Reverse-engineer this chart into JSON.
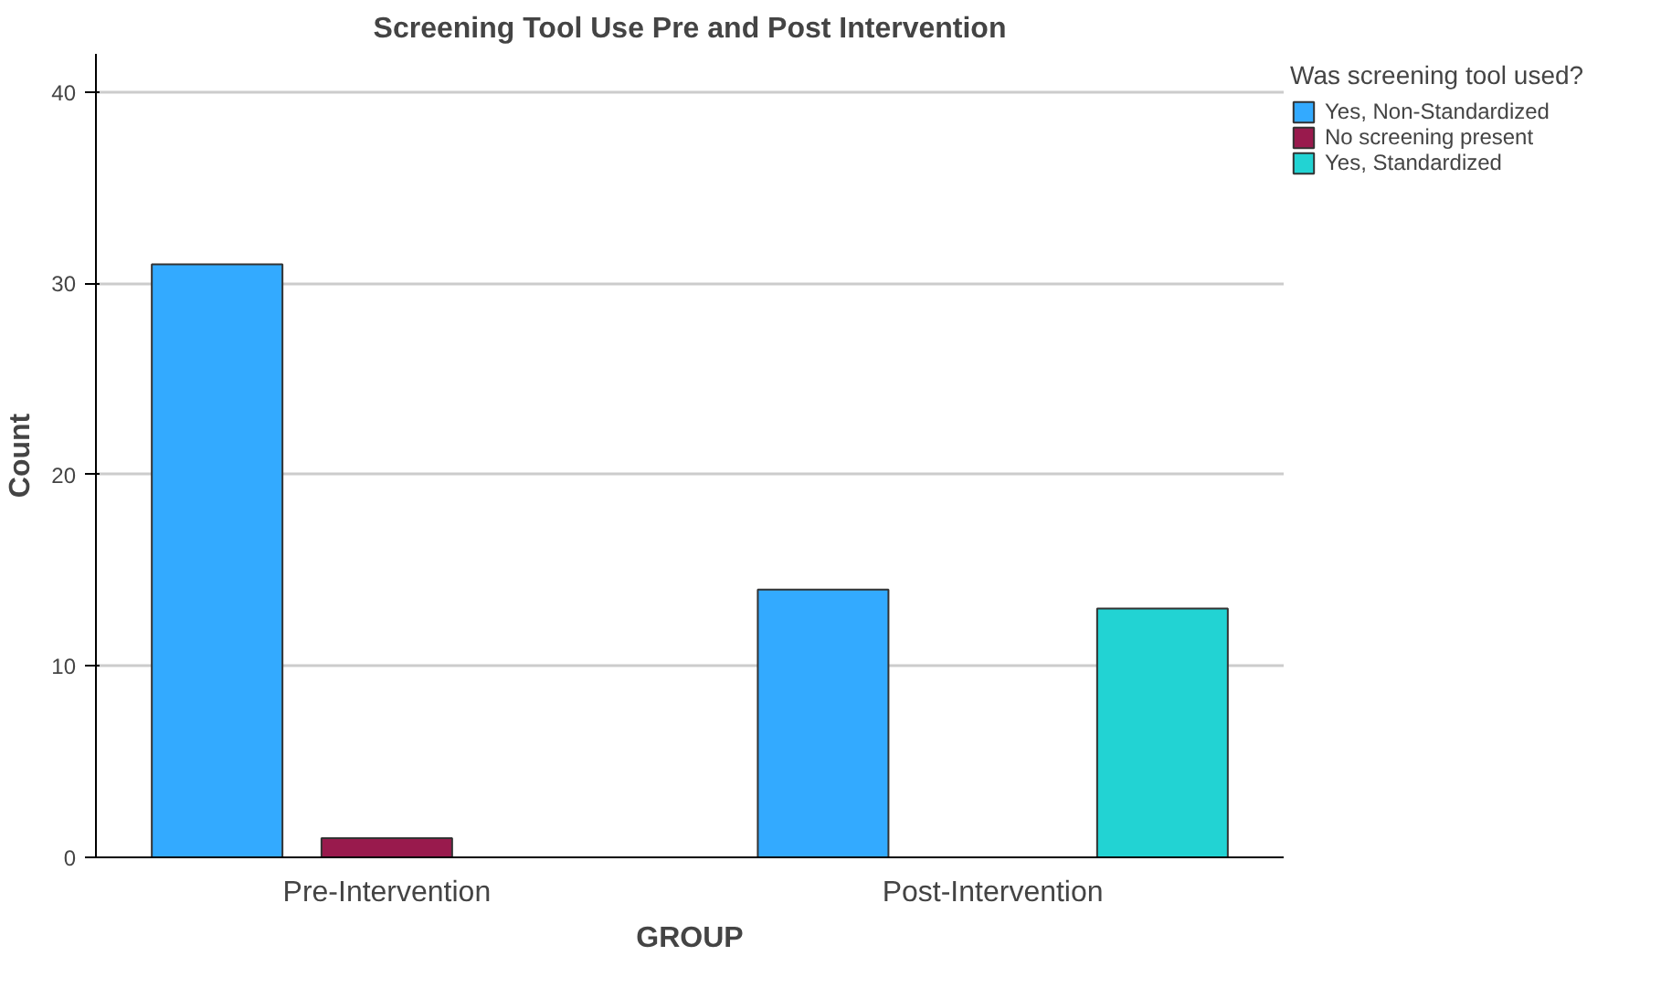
{
  "chart_data": {
    "type": "bar",
    "title": "Screening Tool Use Pre and Post Intervention",
    "xlabel": "GROUP",
    "ylabel": "Count",
    "legend_title": "Was screening tool used?",
    "categories": [
      "Pre-Intervention",
      "Post-Intervention"
    ],
    "series": [
      {
        "name": "Yes, Non-Standardized",
        "color": "#33aaff",
        "values": [
          31,
          14
        ]
      },
      {
        "name": "No screening present",
        "color": "#991a4d",
        "values": [
          1,
          null
        ]
      },
      {
        "name": "Yes, Standardized",
        "color": "#22d3d3",
        "values": [
          null,
          13
        ]
      }
    ],
    "ylim": [
      0,
      42
    ],
    "yticks": [
      0,
      10,
      20,
      30,
      40
    ],
    "grid": "y",
    "legend": "top right"
  }
}
